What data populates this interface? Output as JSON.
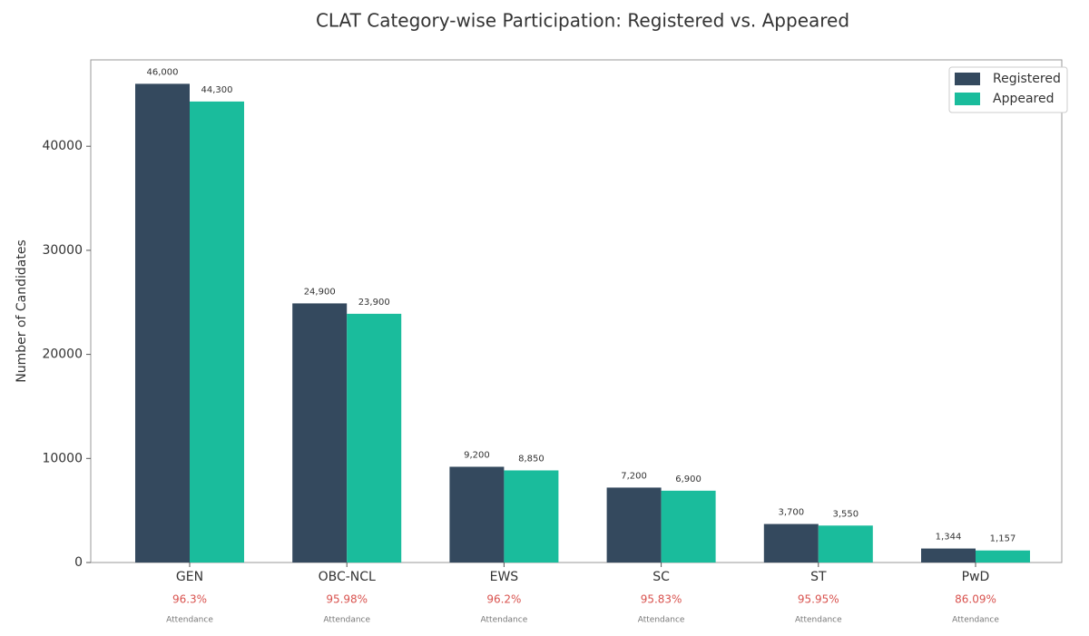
{
  "chart_data": {
    "type": "bar",
    "title": "CLAT Category-wise Participation: Registered vs. Appeared",
    "ylabel": "Number of Candidates",
    "categories": [
      "GEN",
      "OBC-NCL",
      "EWS",
      "SC",
      "ST",
      "PwD"
    ],
    "series": [
      {
        "name": "Registered",
        "color": "#34495e",
        "values": [
          46000,
          24900,
          9200,
          7200,
          3700,
          1344
        ],
        "value_labels": [
          "46,000",
          "24,900",
          "9,200",
          "7,200",
          "3,700",
          "1,344"
        ]
      },
      {
        "name": "Appeared",
        "color": "#1abc9c",
        "values": [
          44300,
          23900,
          8850,
          6900,
          3550,
          1157
        ],
        "value_labels": [
          "44,300",
          "23,900",
          "8,850",
          "6,900",
          "3,550",
          "1,157"
        ]
      }
    ],
    "attendance": [
      {
        "value": 96.3,
        "label": "96.3%"
      },
      {
        "value": 95.98,
        "label": "95.98%"
      },
      {
        "value": 96.2,
        "label": "96.2%"
      },
      {
        "value": 95.83,
        "label": "95.83%"
      },
      {
        "value": 95.95,
        "label": "95.95%"
      },
      {
        "value": 86.09,
        "label": "86.09%"
      }
    ],
    "attendance_caption": "Attendance",
    "attendance_color": "#d9534f",
    "ylim": [
      0,
      48300
    ],
    "yticks": [
      0,
      10000,
      20000,
      30000,
      40000
    ],
    "grid": false,
    "legend": "upper-right"
  }
}
